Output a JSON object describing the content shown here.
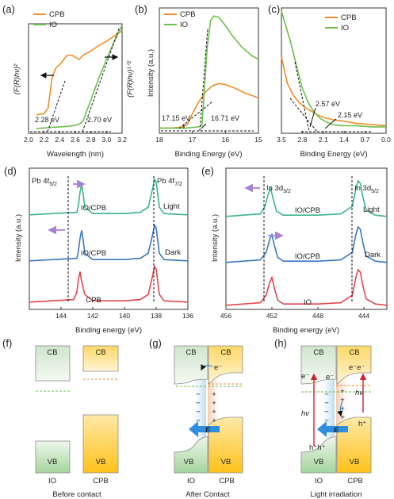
{
  "colors": {
    "orange": "#f28c28",
    "green": "#6cc04a",
    "blue": "#3a77c2",
    "red": "#e0484d",
    "teal": "#3bb58a",
    "purple": "#a580d8",
    "cb_green": "#e8f2e6",
    "cb_orange": "#fff0cc",
    "vb_orange": "#ffc933",
    "efield": "#2e8fe0"
  },
  "panels": {
    "a": {
      "letter": "(a)",
      "legend": [
        "CPB",
        "IO"
      ],
      "xlabel": "Wavelength (nm)",
      "ylabel_left": "(F(R)hν)²",
      "ylabel_right": "(F(R)hν)¹ᐟ²",
      "annotations": [
        "2.28 eV",
        "2.70 eV"
      ]
    },
    "b": {
      "letter": "(b)",
      "legend": [
        "CPB",
        "IO"
      ],
      "xlabel": "Binding Energy (eV)",
      "ylabel": "Intensity (a.u.)",
      "annotations": [
        "17.15 eV",
        "16.71 eV"
      ]
    },
    "c": {
      "letter": "(c)",
      "legend": [
        "CPB",
        "IO"
      ],
      "xlabel": "Binding Energy (eV)",
      "annotations": [
        "2.57 eV",
        "2.15 eV"
      ]
    },
    "d": {
      "letter": "(d)",
      "xlabel": "Binding energy (eV)",
      "ylabel": "Intensity (a.u.)",
      "peak_labels": [
        "Pb 4f",
        "5/2",
        "Pb 4f",
        "7/2"
      ],
      "traces": [
        "IO/CPB",
        "IO/CPB",
        "CPB"
      ],
      "conditions": [
        "Light",
        "Dark"
      ]
    },
    "e": {
      "letter": "(e)",
      "xlabel": "Binding energy (eV)",
      "ylabel": "Intensity (a.u.)",
      "peak_labels": [
        "In 3d",
        "3/2",
        "In 3d",
        "5/2"
      ],
      "traces": [
        "IO/CPB",
        "IO/CPB",
        "IO"
      ],
      "conditions": [
        "Light",
        "Dark"
      ]
    },
    "f": {
      "letter": "(f)",
      "cb": "CB",
      "vb": "VB",
      "materials": [
        "IO",
        "CPB"
      ],
      "caption": "Before contact"
    },
    "g": {
      "letter": "(g)",
      "cb": "CB",
      "vb": "VB",
      "materials": [
        "IO",
        "CPB"
      ],
      "caption": "After Contact",
      "electron": "e⁻",
      "field": "E",
      "charges_plus": [
        "+",
        "+",
        "+",
        "+"
      ],
      "charges_minus": [
        "−",
        "−",
        "−",
        "−"
      ]
    },
    "h": {
      "letter": "(h)",
      "cb": "CB",
      "vb": "VB",
      "materials": [
        "IO",
        "CPB"
      ],
      "caption": "Light irradiation",
      "electrons": [
        "e⁻",
        "e⁻",
        "e⁻e⁻"
      ],
      "holes": [
        "h⁺h⁺",
        "h⁺"
      ],
      "photon": "hν",
      "field": "E",
      "charges_plus": [
        "+",
        "+",
        "+",
        "+"
      ],
      "charges_minus": [
        "−",
        "−",
        "−",
        "−"
      ]
    }
  },
  "chart_data": [
    {
      "panel": "a",
      "type": "line",
      "xlabel": "Wavelength (nm)",
      "xlim": [
        2.0,
        3.2
      ],
      "xticks": [
        "2.0",
        "2.2",
        "2.4",
        "2.6",
        "2.8",
        "3.0",
        "3.2"
      ],
      "series": [
        {
          "name": "CPB",
          "x": [
            2.1,
            2.2,
            2.25,
            2.3,
            2.35,
            2.4,
            2.45,
            2.5,
            2.55,
            2.6,
            2.65,
            2.7,
            2.8,
            2.9,
            3.0,
            3.1,
            3.2
          ],
          "y": [
            0.16,
            0.17,
            0.22,
            0.5,
            0.6,
            0.63,
            0.68,
            0.72,
            0.72,
            0.7,
            0.68,
            0.72,
            0.76,
            0.81,
            0.85,
            0.9,
            0.95
          ]
        },
        {
          "name": "IO",
          "x": [
            2.1,
            2.3,
            2.5,
            2.6,
            2.65,
            2.7,
            2.75,
            2.8,
            2.9,
            3.0,
            3.1,
            3.2
          ],
          "y": [
            0.03,
            0.04,
            0.05,
            0.06,
            0.07,
            0.1,
            0.2,
            0.3,
            0.5,
            0.68,
            0.85,
            1.0
          ]
        }
      ]
    },
    {
      "panel": "b",
      "type": "line",
      "xlabel": "Binding Energy (eV)",
      "ylabel": "Intensity (a.u.)",
      "xlim": [
        18,
        15
      ],
      "xticks": [
        "18",
        "17",
        "16",
        "15"
      ],
      "series": [
        {
          "name": "CPB",
          "x": [
            18,
            17.6,
            17.3,
            17.15,
            17.0,
            16.8,
            16.6,
            16.4,
            16.2,
            16.0,
            15.7,
            15.4,
            15.0
          ],
          "y": [
            0.03,
            0.03,
            0.04,
            0.06,
            0.15,
            0.25,
            0.33,
            0.38,
            0.4,
            0.39,
            0.36,
            0.32,
            0.28
          ]
        },
        {
          "name": "IO",
          "x": [
            18,
            17.2,
            16.8,
            16.71,
            16.65,
            16.55,
            16.45,
            16.35,
            16.2,
            16.0,
            15.8,
            15.5,
            15.2,
            15.0
          ],
          "y": [
            0.03,
            0.03,
            0.04,
            0.05,
            0.3,
            0.7,
            0.92,
            0.96,
            0.95,
            0.88,
            0.8,
            0.7,
            0.63,
            0.6
          ]
        }
      ]
    },
    {
      "panel": "c",
      "type": "line",
      "xlabel": "Binding Energy (eV)",
      "xlim": [
        3.5,
        0.0
      ],
      "xticks": [
        "3.5",
        "2.8",
        "2.1",
        "1.4",
        "0.7",
        "0.0"
      ],
      "series": [
        {
          "name": "CPB",
          "x": [
            3.5,
            3.3,
            3.1,
            2.9,
            2.7,
            2.5,
            2.3,
            2.1,
            1.8,
            1.5,
            1.0,
            0.5,
            0.0
          ],
          "y": [
            0.62,
            0.4,
            0.3,
            0.24,
            0.2,
            0.17,
            0.14,
            0.12,
            0.1,
            0.09,
            0.07,
            0.06,
            0.05
          ]
        },
        {
          "name": "IO",
          "x": [
            3.5,
            3.2,
            3.0,
            2.8,
            2.6,
            2.4,
            2.2,
            2.0,
            1.8,
            1.5,
            1.0,
            0.5,
            0.0
          ],
          "y": [
            1.0,
            0.75,
            0.55,
            0.36,
            0.24,
            0.16,
            0.11,
            0.08,
            0.06,
            0.05,
            0.05,
            0.04,
            0.04
          ]
        }
      ]
    },
    {
      "panel": "d",
      "type": "line",
      "xlabel": "Binding energy (eV)",
      "ylabel": "Intensity (a.u.)",
      "xlim": [
        146,
        136
      ],
      "xticks": [
        "144",
        "142",
        "140",
        "138",
        "136"
      ],
      "series": [
        {
          "name": "IO/CPB",
          "x": [
            146,
            143,
            142.9,
            142.8,
            142.7,
            142.6,
            142.5,
            142,
            140,
            139,
            138.5,
            138.2,
            138.1,
            138.0,
            137.9,
            137.8,
            137.5,
            136
          ],
          "y": [
            0.02,
            0.04,
            0.1,
            0.2,
            0.26,
            0.18,
            0.08,
            0.03,
            0.03,
            0.04,
            0.08,
            0.24,
            0.3,
            0.28,
            0.18,
            0.08,
            0.03,
            0.02
          ]
        },
        {
          "name": "IO/CPB",
          "x": [
            146,
            143,
            142.9,
            142.8,
            142.7,
            142.6,
            142.5,
            142,
            140,
            139,
            138.5,
            138.2,
            138.1,
            138.0,
            137.9,
            137.8,
            137.5,
            136
          ],
          "y": [
            0.02,
            0.04,
            0.1,
            0.2,
            0.26,
            0.18,
            0.08,
            0.03,
            0.03,
            0.04,
            0.08,
            0.24,
            0.3,
            0.28,
            0.18,
            0.08,
            0.03,
            0.02
          ]
        },
        {
          "name": "CPB",
          "x": [
            146,
            143.2,
            143.0,
            142.9,
            142.8,
            142.7,
            142.5,
            142,
            140,
            139,
            138.5,
            138.2,
            138.1,
            138.0,
            137.9,
            137.8,
            137.5,
            136
          ],
          "y": [
            0.02,
            0.04,
            0.1,
            0.2,
            0.26,
            0.18,
            0.08,
            0.03,
            0.03,
            0.04,
            0.08,
            0.24,
            0.3,
            0.28,
            0.18,
            0.08,
            0.03,
            0.02
          ]
        }
      ]
    },
    {
      "panel": "e",
      "type": "line",
      "xlabel": "Binding energy (eV)",
      "ylabel": "Intensity (a.u.)",
      "xlim": [
        456,
        442
      ],
      "xticks": [
        "456",
        "452",
        "448",
        "444"
      ],
      "series": [
        {
          "name": "IO/CPB",
          "x": [
            456,
            453,
            452.6,
            452.3,
            452.1,
            451.9,
            451.6,
            451,
            448,
            446,
            445.0,
            444.7,
            444.5,
            444.3,
            444.1,
            443.8,
            443,
            442
          ],
          "y": [
            0.02,
            0.04,
            0.1,
            0.2,
            0.24,
            0.16,
            0.06,
            0.03,
            0.03,
            0.04,
            0.1,
            0.24,
            0.3,
            0.28,
            0.18,
            0.07,
            0.03,
            0.02
          ]
        },
        {
          "name": "IO/CPB",
          "x": [
            456,
            453,
            452.5,
            452.2,
            452.0,
            451.8,
            451.5,
            451,
            448,
            446,
            445.0,
            444.7,
            444.5,
            444.3,
            444.1,
            443.8,
            443,
            442
          ],
          "y": [
            0.02,
            0.04,
            0.1,
            0.2,
            0.24,
            0.16,
            0.06,
            0.03,
            0.03,
            0.04,
            0.1,
            0.24,
            0.3,
            0.28,
            0.18,
            0.07,
            0.03,
            0.02
          ]
        },
        {
          "name": "IO",
          "x": [
            456,
            453,
            452.5,
            452.2,
            452.0,
            451.8,
            451.5,
            451,
            448,
            446,
            445.0,
            444.7,
            444.5,
            444.3,
            444.1,
            443.8,
            443,
            442
          ],
          "y": [
            0.02,
            0.04,
            0.1,
            0.2,
            0.24,
            0.16,
            0.06,
            0.03,
            0.03,
            0.04,
            0.1,
            0.24,
            0.3,
            0.28,
            0.18,
            0.07,
            0.03,
            0.02
          ]
        }
      ]
    }
  ]
}
